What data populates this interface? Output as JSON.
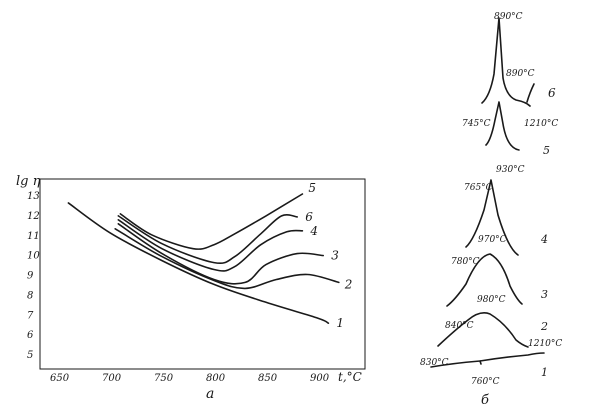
{
  "chart_data": [
    {
      "panel": "a",
      "type": "line",
      "title": "",
      "xlabel": "t,°C",
      "ylabel": "lg η",
      "panel_label": "а",
      "xlim": [
        650,
        950
      ],
      "ylim": [
        5,
        13.5
      ],
      "x_ticks": [
        "650",
        "700",
        "750",
        "800",
        "850",
        "900"
      ],
      "y_ticks": [
        "5",
        "6",
        "7",
        "8",
        "9",
        "10",
        "11",
        "12",
        "13"
      ],
      "grid": false,
      "series": [
        {
          "name": "1",
          "x": [
            660,
            700,
            750,
            800,
            850,
            900,
            910
          ],
          "y": [
            12.6,
            11.1,
            9.7,
            8.5,
            7.6,
            6.8,
            6.55
          ]
        },
        {
          "name": "2",
          "x": [
            705,
            750,
            800,
            830,
            860,
            890,
            920
          ],
          "y": [
            11.3,
            9.9,
            8.7,
            8.3,
            8.75,
            9.0,
            8.6
          ]
        },
        {
          "name": "3",
          "x": [
            708,
            750,
            800,
            830,
            850,
            880,
            905
          ],
          "y": [
            11.55,
            10.05,
            8.75,
            8.6,
            9.5,
            10.05,
            9.95
          ]
        },
        {
          "name": "4",
          "x": [
            708,
            750,
            800,
            820,
            845,
            870,
            885
          ],
          "y": [
            11.75,
            10.3,
            9.25,
            9.4,
            10.5,
            11.15,
            11.2
          ]
        },
        {
          "name": "6",
          "x": [
            708,
            750,
            800,
            820,
            845,
            865,
            880
          ],
          "y": [
            11.95,
            10.55,
            9.6,
            9.9,
            11.05,
            11.95,
            11.9
          ]
        },
        {
          "name": "5",
          "x": [
            710,
            740,
            780,
            800,
            820,
            850,
            885
          ],
          "y": [
            12.05,
            11.0,
            10.3,
            10.5,
            11.05,
            11.95,
            13.05
          ]
        }
      ]
    },
    {
      "panel": "b",
      "type": "line",
      "panel_label": "б",
      "title": "",
      "curve_labels": [
        "6",
        "5",
        "4",
        "3",
        "2",
        "1"
      ],
      "annotations": [
        "890°C",
        "890°C",
        "745°C",
        "1210°C",
        "930°C",
        "765°C",
        "970°C",
        "780°C",
        "980°C",
        "840°C",
        "1210°C",
        "830°C",
        "760°C"
      ]
    }
  ]
}
